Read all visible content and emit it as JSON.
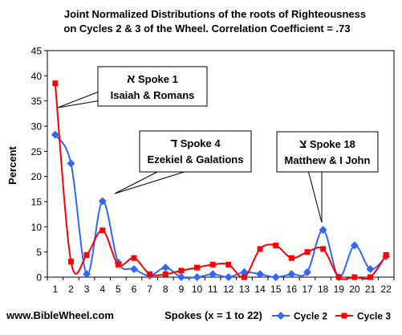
{
  "chart_data": {
    "type": "line",
    "title": "Joint Normalized Distributions of the roots of Righteousness",
    "subtitle": "on Cycles 2 & 3 of the Wheel. Correlation Coefficient = .73",
    "xlabel": "Spokes (x = 1 to 22)",
    "ylabel": "Percent",
    "ylim": [
      0,
      45
    ],
    "yticks": [
      0,
      5,
      10,
      15,
      20,
      25,
      30,
      35,
      40,
      45
    ],
    "categories": [
      "1",
      "2",
      "3",
      "4",
      "5",
      "6",
      "7",
      "8",
      "9",
      "10",
      "11",
      "12",
      "13",
      "14",
      "15",
      "16",
      "17",
      "18",
      "19",
      "20",
      "21",
      "22"
    ],
    "smooth": true,
    "grid": false,
    "legend_position": "bottom-right",
    "series": [
      {
        "name": "Cycle 2",
        "color": "#3366ff",
        "marker": "diamond",
        "values": [
          28.3,
          22.6,
          0.6,
          15.1,
          2.9,
          1.6,
          0.3,
          1.9,
          0.0,
          0.0,
          0.6,
          0.0,
          1.0,
          0.6,
          0.0,
          0.6,
          1.0,
          9.4,
          0.0,
          6.3,
          1.6,
          4.1
        ]
      },
      {
        "name": "Cycle 3",
        "color": "#ff0000",
        "marker": "square",
        "values": [
          38.5,
          3.1,
          4.4,
          9.3,
          2.5,
          3.8,
          0.6,
          0.6,
          1.3,
          1.9,
          2.5,
          2.5,
          0.0,
          5.6,
          6.3,
          3.8,
          5.0,
          5.6,
          0.0,
          0.0,
          0.0,
          4.4
        ]
      }
    ],
    "annotations": [
      {
        "glyph": "א",
        "title": "Spoke 1",
        "subtitle": "Isaiah & Romans",
        "x": 1,
        "y": 33.5
      },
      {
        "glyph": "ד",
        "title": "Spoke 4",
        "subtitle": "Ezekiel & Galations",
        "x": 4,
        "y": 16.8
      },
      {
        "glyph": "צ",
        "title": "Spoke 18",
        "subtitle": "Matthew & I John",
        "x": 18,
        "y": 10.5
      }
    ],
    "footer": "www.BibleWheel.com"
  }
}
